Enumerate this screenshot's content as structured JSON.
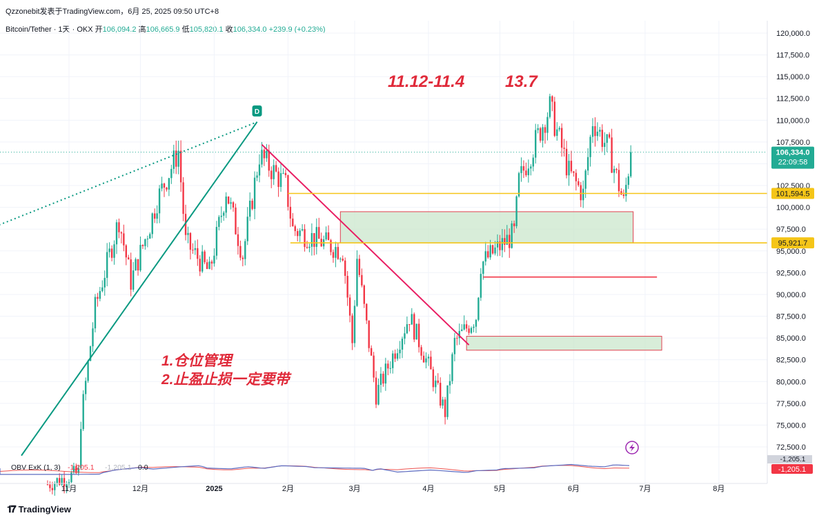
{
  "header": {
    "publisher": "Qzzonebit发表于TradingView.com，6月 25, 2025 09:50 UTC+8",
    "symbol": "Bitcoin/Tether · 1天 · OKX",
    "open_label": "开",
    "open": "106,094.2",
    "high_label": "高",
    "high": "106,665.9",
    "low_label": "低",
    "low": "105,820.1",
    "close_label": "收",
    "close": "106,334.0",
    "change": "+239.9 (+0.23%)"
  },
  "annotations": {
    "ratio_text": "11.12-11.4",
    "target_text": "13.7",
    "note_line1": "1.仓位管理",
    "note_line2": "2.止盈止损一定要带",
    "marker_label": "D"
  },
  "price_labels": {
    "current": "106,334.0",
    "countdown": "22:09:58",
    "resistance": "101,594.5",
    "support": "95,921.7"
  },
  "indicator": {
    "label": "OBV ExK (1, 3)",
    "value1": "-1,205.1",
    "value2": "-1,205.1",
    "value3": "0.0",
    "axis_top": "-1,205.1",
    "axis_badge": "-1,205.1"
  },
  "footer": {
    "brand": "TradingView"
  },
  "colors": {
    "up": "#22ab94",
    "down": "#f23645",
    "trend_green": "#089981",
    "trend_red": "#e91e63",
    "level_yellow": "#f5c518",
    "zone_fill": "#c8e6c9",
    "zone_border": "#e04050",
    "annotation_red": "#e02a3a"
  },
  "chart_data": {
    "type": "candlestick",
    "symbol": "Bitcoin/Tether",
    "interval": "1天",
    "exchange": "OKX",
    "y_ticks": [
      72500,
      75000,
      77500,
      80000,
      82500,
      85000,
      87500,
      90000,
      92500,
      95000,
      97500,
      100000,
      102500,
      105000,
      107500,
      110000,
      112500,
      115000,
      117500,
      120000
    ],
    "y_tick_labels": [
      "72,500.0",
      "75,000.0",
      "77,500.0",
      "80,000.0",
      "82,500.0",
      "85,000.0",
      "87,500.0",
      "90,000.0",
      "92,500.0",
      "95,000.0",
      "97,500.0",
      "100,000.0",
      "102,500.0",
      "105,000.0",
      "107,500.0",
      "110,000.0",
      "112,500.0",
      "115,000.0",
      "117,500.0",
      "120,000.0"
    ],
    "x_labels": [
      "11月",
      "12月",
      "2025",
      "2月",
      "3月",
      "4月",
      "5月",
      "6月",
      "7月",
      "8月"
    ],
    "x_label_dates": [
      "2024-11-01",
      "2024-12-01",
      "2025-01-01",
      "2025-02-01",
      "2025-03-01",
      "2025-04-01",
      "2025-05-01",
      "2025-06-01",
      "2025-07-01",
      "2025-08-01"
    ],
    "anchors": [
      {
        "date": "2024-10-23",
        "price": 68200
      },
      {
        "date": "2024-11-05",
        "price": 69500
      },
      {
        "date": "2024-11-06",
        "price": 75500
      },
      {
        "date": "2024-11-12",
        "price": 88500
      },
      {
        "date": "2024-11-22",
        "price": 98600
      },
      {
        "date": "2024-11-27",
        "price": 91500
      },
      {
        "date": "2024-12-05",
        "price": 98000
      },
      {
        "date": "2024-12-08",
        "price": 100800
      },
      {
        "date": "2024-12-17",
        "price": 106500
      },
      {
        "date": "2024-12-20",
        "price": 96000
      },
      {
        "date": "2024-12-30",
        "price": 92500
      },
      {
        "date": "2025-01-06",
        "price": 102000
      },
      {
        "date": "2025-01-13",
        "price": 94500
      },
      {
        "date": "2025-01-20",
        "price": 106000
      },
      {
        "date": "2025-01-31",
        "price": 102500
      },
      {
        "date": "2025-02-03",
        "price": 97500
      },
      {
        "date": "2025-02-24",
        "price": 95000
      },
      {
        "date": "2025-02-28",
        "price": 84500
      },
      {
        "date": "2025-03-02",
        "price": 94200
      },
      {
        "date": "2025-03-10",
        "price": 78500
      },
      {
        "date": "2025-03-24",
        "price": 87500
      },
      {
        "date": "2025-03-31",
        "price": 82500
      },
      {
        "date": "2025-04-08",
        "price": 76500
      },
      {
        "date": "2025-04-12",
        "price": 84500
      },
      {
        "date": "2025-04-21",
        "price": 87500
      },
      {
        "date": "2025-04-23",
        "price": 93500
      },
      {
        "date": "2025-05-07",
        "price": 97000
      },
      {
        "date": "2025-05-09",
        "price": 103000
      },
      {
        "date": "2025-05-22",
        "price": 111500
      },
      {
        "date": "2025-05-30",
        "price": 104000
      },
      {
        "date": "2025-06-05",
        "price": 101500
      },
      {
        "date": "2025-06-09",
        "price": 110000
      },
      {
        "date": "2025-06-16",
        "price": 106500
      },
      {
        "date": "2025-06-22",
        "price": 100500
      },
      {
        "date": "2025-06-25",
        "price": 106334
      }
    ],
    "levels": [
      {
        "name": "resistance",
        "price": 101594.5,
        "from": "2025-02-01",
        "to": "2025-07-31"
      },
      {
        "name": "support",
        "price": 95921.7,
        "from": "2025-02-02",
        "to": "2025-07-31"
      },
      {
        "name": "red_line",
        "price": 92000,
        "from": "2025-04-24",
        "to": "2025-07-06"
      }
    ],
    "zones": [
      {
        "from": "2025-02-23",
        "to": "2025-06-26",
        "top": 99500,
        "bottom": 95900
      },
      {
        "from": "2025-04-17",
        "to": "2025-07-08",
        "top": 85200,
        "bottom": 83600
      }
    ],
    "trendlines": [
      {
        "color": "green",
        "style": "solid",
        "from": {
          "date": "2024-10-12",
          "price": 71500
        },
        "to": {
          "date": "2025-01-19",
          "price": 109800
        }
      },
      {
        "color": "green",
        "style": "dotted",
        "from": {
          "date": "2024-10-01",
          "price": 97800
        },
        "to": {
          "date": "2025-01-19",
          "price": 109800
        }
      },
      {
        "color": "red",
        "style": "solid",
        "from": {
          "date": "2025-01-21",
          "price": 107200
        },
        "to": {
          "date": "2025-04-18",
          "price": 84200
        }
      }
    ]
  }
}
